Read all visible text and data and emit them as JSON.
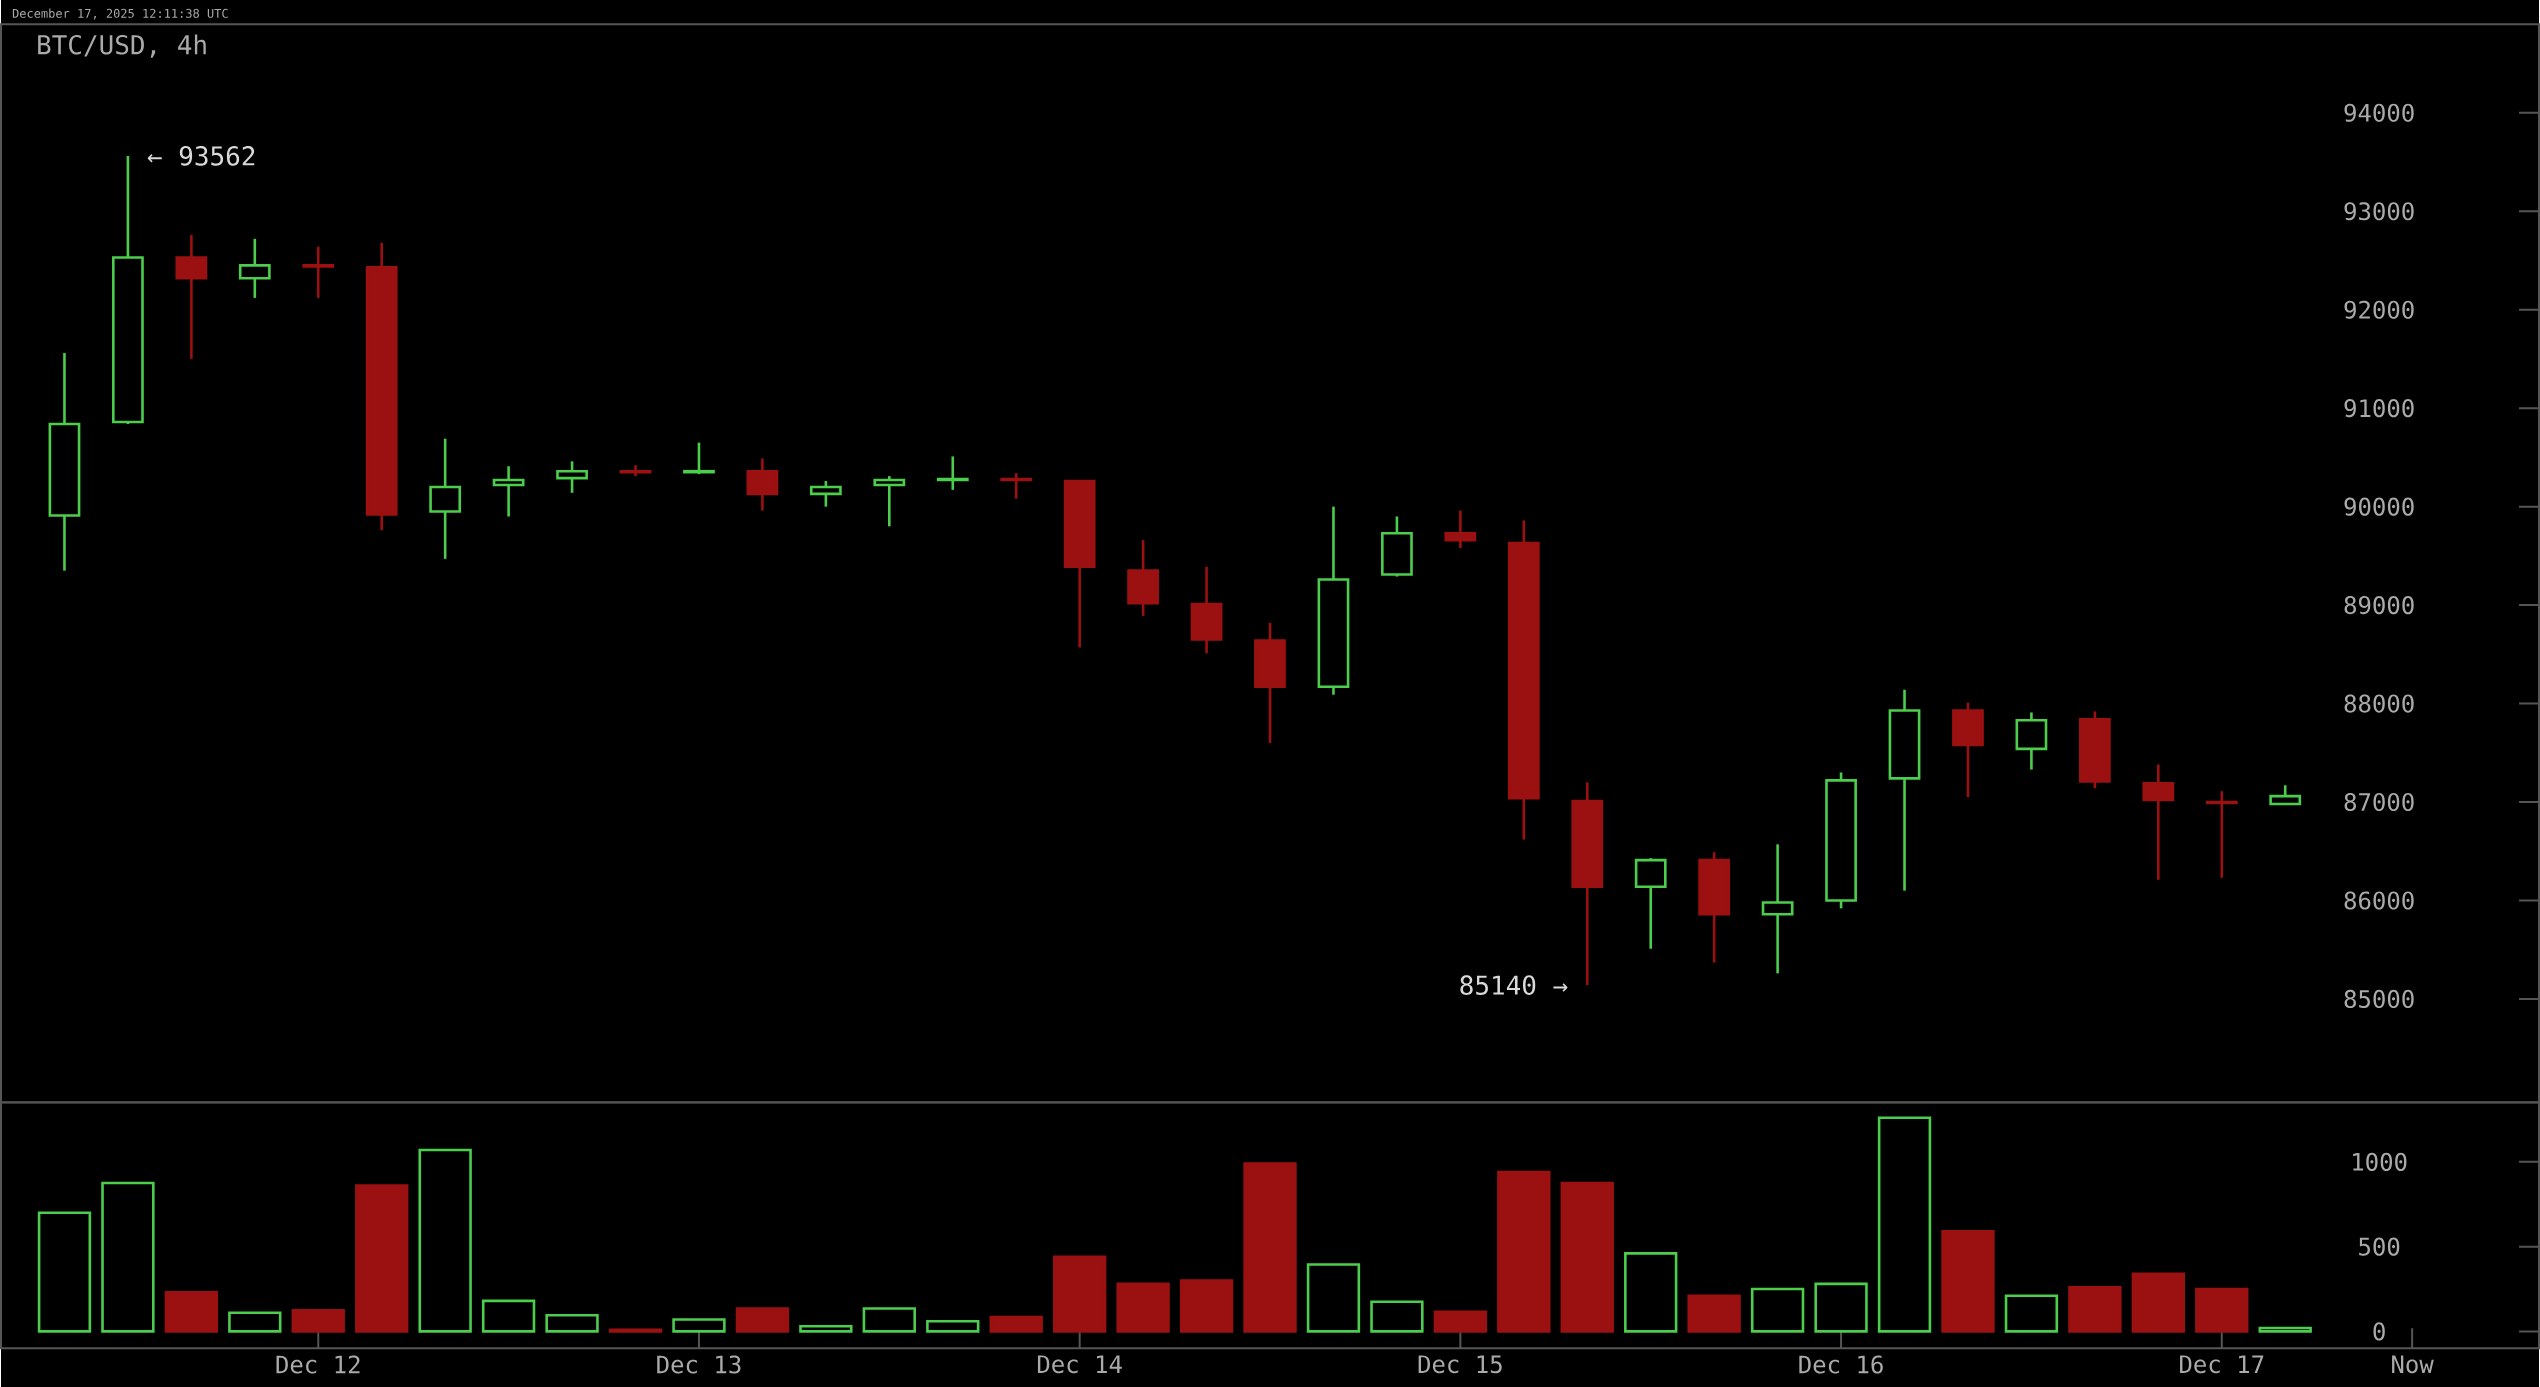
{
  "chart_data": [
    {
      "type": "candlestick",
      "title": "BTC/USD, 4h",
      "x": [
        "2025-12-11T08:00",
        "2025-12-11T12:00",
        "2025-12-11T16:00",
        "2025-12-11T20:00",
        "2025-12-12T00:00",
        "2025-12-12T04:00",
        "2025-12-12T08:00",
        "2025-12-12T12:00",
        "2025-12-12T16:00",
        "2025-12-12T20:00",
        "2025-12-13T00:00",
        "2025-12-13T04:00",
        "2025-12-13T08:00",
        "2025-12-13T12:00",
        "2025-12-13T16:00",
        "2025-12-13T20:00",
        "2025-12-14T00:00",
        "2025-12-14T04:00",
        "2025-12-14T08:00",
        "2025-12-14T12:00",
        "2025-12-14T16:00",
        "2025-12-14T20:00",
        "2025-12-15T00:00",
        "2025-12-15T04:00",
        "2025-12-15T08:00",
        "2025-12-15T12:00",
        "2025-12-15T16:00",
        "2025-12-15T20:00",
        "2025-12-16T00:00",
        "2025-12-16T04:00",
        "2025-12-16T08:00",
        "2025-12-16T12:00",
        "2025-12-16T16:00",
        "2025-12-16T20:00",
        "2025-12-17T00:00",
        "2025-12-17T04:00"
      ],
      "ohlc": [
        [
          89910,
          91560,
          89350,
          90840
        ],
        [
          90860,
          93562,
          90840,
          92530
        ],
        [
          92530,
          92760,
          91500,
          92320
        ],
        [
          92320,
          92720,
          92120,
          92450
        ],
        [
          92450,
          92640,
          92120,
          92440
        ],
        [
          92430,
          92680,
          89760,
          89920
        ],
        [
          89950,
          90690,
          89470,
          90200
        ],
        [
          90220,
          90410,
          89900,
          90270
        ],
        [
          90290,
          90460,
          90140,
          90360
        ],
        [
          90360,
          90420,
          90310,
          90350
        ],
        [
          90350,
          90650,
          90330,
          90360
        ],
        [
          90360,
          90490,
          89960,
          90130
        ],
        [
          90130,
          90260,
          90000,
          90200
        ],
        [
          90220,
          90310,
          89800,
          90270
        ],
        [
          90270,
          90510,
          90170,
          90280
        ],
        [
          90280,
          90340,
          90080,
          90270
        ],
        [
          90260,
          90270,
          88570,
          89390
        ],
        [
          89350,
          89660,
          88890,
          89020
        ],
        [
          89010,
          89390,
          88510,
          88650
        ],
        [
          88640,
          88820,
          87600,
          88170
        ],
        [
          88170,
          90000,
          88090,
          89260
        ],
        [
          89310,
          89900,
          89290,
          89730
        ],
        [
          89730,
          89960,
          89580,
          89660
        ],
        [
          89630,
          89860,
          86620,
          87040
        ],
        [
          87010,
          87200,
          85140,
          86140
        ],
        [
          86140,
          86430,
          85510,
          86410
        ],
        [
          86410,
          86490,
          85370,
          85860
        ],
        [
          85860,
          86570,
          85260,
          85980
        ],
        [
          86000,
          87300,
          85920,
          87220
        ],
        [
          87240,
          88140,
          86100,
          87930
        ],
        [
          87930,
          88010,
          87050,
          87580
        ],
        [
          87540,
          87910,
          87330,
          87830
        ],
        [
          87840,
          87920,
          87140,
          87210
        ],
        [
          87190,
          87380,
          86210,
          87020
        ],
        [
          87000,
          87110,
          86230,
          86990
        ],
        [
          86980,
          87170,
          86980,
          87060
        ]
      ],
      "colors": [
        "#4ccd4c",
        "#4ccd4c",
        "#9b1010",
        "#4ccd4c",
        "#9b1010",
        "#9b1010",
        "#4ccd4c",
        "#4ccd4c",
        "#4ccd4c",
        "#9b1010",
        "#4ccd4c",
        "#9b1010",
        "#4ccd4c",
        "#4ccd4c",
        "#4ccd4c",
        "#9b1010",
        "#9b1010",
        "#9b1010",
        "#9b1010",
        "#9b1010",
        "#4ccd4c",
        "#4ccd4c",
        "#9b1010",
        "#9b1010",
        "#9b1010",
        "#4ccd4c",
        "#9b1010",
        "#4ccd4c",
        "#4ccd4c",
        "#4ccd4c",
        "#9b1010",
        "#4ccd4c",
        "#9b1010",
        "#9b1010",
        "#9b1010",
        "#4ccd4c"
      ],
      "xlim": [
        "2025-12-11T04:00",
        "2025-12-17T20:00"
      ],
      "ylim": [
        83950,
        94900
      ],
      "yticks": [
        85000,
        86000,
        87000,
        88000,
        89000,
        90000,
        91000,
        92000,
        93000,
        94000
      ],
      "tick_labels": "y",
      "annotations": [
        "December 17, 2025 12:11:38 UTC",
        {
          "text": "← 93562",
          "x": "2025-12-11T12:00",
          "y": 93562
        },
        {
          "text": "85140 →",
          "x": "2025-12-15T08:00",
          "y": 85140
        }
      ]
    },
    {
      "type": "bar",
      "x": [
        "2025-12-11T08:00",
        "2025-12-11T12:00",
        "2025-12-11T16:00",
        "2025-12-11T20:00",
        "2025-12-12T00:00",
        "2025-12-12T04:00",
        "2025-12-12T08:00",
        "2025-12-12T12:00",
        "2025-12-12T16:00",
        "2025-12-12T20:00",
        "2025-12-13T00:00",
        "2025-12-13T04:00",
        "2025-12-13T08:00",
        "2025-12-13T12:00",
        "2025-12-13T16:00",
        "2025-12-13T20:00",
        "2025-12-14T00:00",
        "2025-12-14T04:00",
        "2025-12-14T08:00",
        "2025-12-14T12:00",
        "2025-12-14T16:00",
        "2025-12-14T20:00",
        "2025-12-15T00:00",
        "2025-12-15T04:00",
        "2025-12-15T08:00",
        "2025-12-15T12:00",
        "2025-12-15T16:00",
        "2025-12-15T20:00",
        "2025-12-16T00:00",
        "2025-12-16T04:00",
        "2025-12-16T08:00",
        "2025-12-16T12:00",
        "2025-12-16T16:00",
        "2025-12-16T20:00",
        "2025-12-17T00:00",
        "2025-12-17T04:00"
      ],
      "values": [
        700,
        875,
        230,
        110,
        125,
        860,
        1070,
        180,
        95,
        10,
        70,
        135,
        30,
        135,
        60,
        85,
        440,
        280,
        300,
        990,
        395,
        175,
        115,
        940,
        875,
        460,
        210,
        250,
        280,
        1260,
        590,
        210,
        260,
        340,
        250,
        20
      ],
      "colors": [
        "#4ccd4c",
        "#4ccd4c",
        "#9b1010",
        "#4ccd4c",
        "#9b1010",
        "#9b1010",
        "#4ccd4c",
        "#4ccd4c",
        "#4ccd4c",
        "#9b1010",
        "#4ccd4c",
        "#9b1010",
        "#4ccd4c",
        "#4ccd4c",
        "#4ccd4c",
        "#9b1010",
        "#9b1010",
        "#9b1010",
        "#9b1010",
        "#9b1010",
        "#4ccd4c",
        "#4ccd4c",
        "#9b1010",
        "#9b1010",
        "#9b1010",
        "#4ccd4c",
        "#9b1010",
        "#4ccd4c",
        "#4ccd4c",
        "#4ccd4c",
        "#9b1010",
        "#4ccd4c",
        "#9b1010",
        "#9b1010",
        "#9b1010",
        "#4ccd4c"
      ],
      "xlim": [
        "2025-12-11T04:00",
        "2025-12-17T20:00"
      ],
      "ylim": [
        -100,
        1350
      ],
      "yticks": [
        0,
        500,
        1000
      ],
      "xticks": [
        {
          "value": "2025-12-12T00:00",
          "label": "Dec 12"
        },
        {
          "value": "2025-12-13T00:00",
          "label": "Dec 13"
        },
        {
          "value": "2025-12-14T00:00",
          "label": "Dec 14"
        },
        {
          "value": "2025-12-15T00:00",
          "label": "Dec 15"
        },
        {
          "value": "2025-12-16T00:00",
          "label": "Dec 16"
        },
        {
          "value": "2025-12-17T00:00",
          "label": "Dec 17"
        },
        {
          "value": "2025-12-17T12:00",
          "label": "Now"
        }
      ]
    }
  ]
}
